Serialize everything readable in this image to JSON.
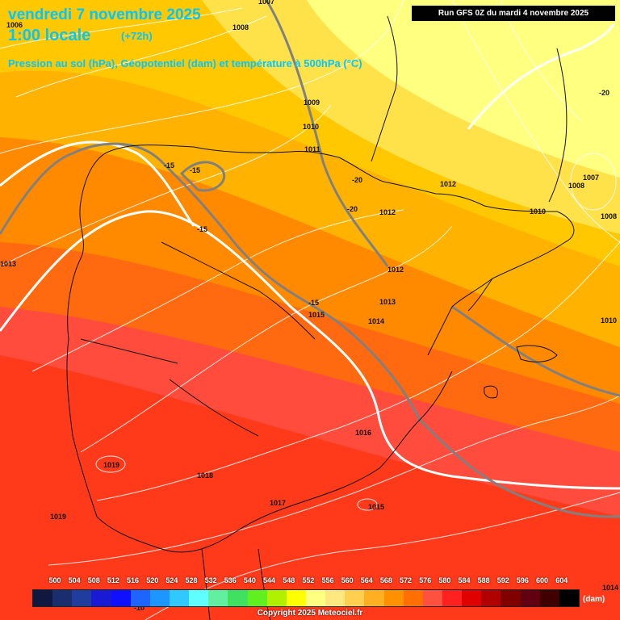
{
  "header": {
    "date": "vendredi 7 novembre 2025",
    "time": "1:00 locale",
    "offset": "(+72h)",
    "parameters": "Pression au sol (hPa), Géopotentiel (dam) et température à 500hPa (°C)",
    "run": "Run GFS 0Z du mardi 4 novembre 2025"
  },
  "pressure_labels": [
    "1007",
    "1006",
    "1008",
    "1009",
    "1010",
    "1011",
    "1012",
    "1012",
    "1012",
    "1013",
    "1014",
    "1015",
    "1016",
    "1017",
    "1018",
    "1019",
    "1019",
    "1015",
    "1013",
    "1010",
    "1007",
    "1008",
    "1008",
    "1010",
    "1014"
  ],
  "temperature_labels": [
    "-15",
    "-15",
    "-15",
    "-20",
    "-20",
    "-15",
    "-20",
    "-10"
  ],
  "legend": {
    "values": [
      "500",
      "504",
      "508",
      "512",
      "516",
      "520",
      "524",
      "528",
      "532",
      "536",
      "540",
      "544",
      "548",
      "552",
      "556",
      "560",
      "564",
      "568",
      "572",
      "576",
      "580",
      "584",
      "588",
      "592",
      "596",
      "600",
      "604"
    ],
    "colors": [
      "#101840",
      "#1a2e6e",
      "#203c9c",
      "#1a1ad4",
      "#1010ff",
      "#1e64ff",
      "#1e96ff",
      "#30c8ff",
      "#60ffff",
      "#60f0a0",
      "#40e060",
      "#60f020",
      "#b0f000",
      "#ffff00",
      "#ffff80",
      "#ffe880",
      "#ffd050",
      "#ffb020",
      "#ff9000",
      "#ff7000",
      "#ff5040",
      "#ff2020",
      "#e00000",
      "#b00000",
      "#800000",
      "#600010",
      "#400000",
      "#000000"
    ],
    "unit": "(dam)"
  },
  "copyright": "Copyright 2025 Meteociel.fr",
  "colors": {
    "title": "#00c8ff",
    "isobar": "#ffffff",
    "isotherm": "#808080",
    "border": "#111111"
  }
}
